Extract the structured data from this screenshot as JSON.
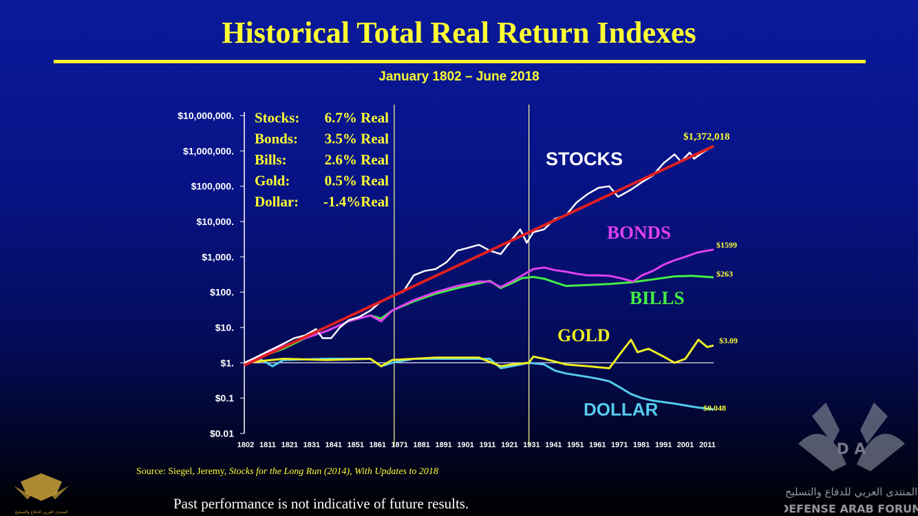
{
  "title": "Historical Total Real Return Indexes",
  "subtitle": "January 1802 – June 2018",
  "source_prefix": "Source:  Siegel,  Jeremy, ",
  "source_italic": "Stocks for the Long Run (2014), With Updates to 2018",
  "disclaimer": "Past performance is not indicative of future results.",
  "watermark": {
    "arabic": "المنتدى العربي للدفاع والتسليح",
    "english": "DEFENSE ARAB FORUM",
    "left_logo_text": "المنتدى العربي للدفاع والتسليح"
  },
  "colors": {
    "text_accent": "#ffff33",
    "stocks": "#ffffff",
    "trend": "#e02020",
    "bonds": "#e040f0",
    "bills": "#44ee44",
    "gold": "#eeee22",
    "dollar": "#55ccee"
  },
  "chart_data": {
    "type": "line",
    "log_scale_y": true,
    "xlim": [
      1802,
      2018
    ],
    "ylim": [
      0.01,
      10000000
    ],
    "y_ticks": [
      10000000,
      1000000,
      100000,
      10000,
      1000,
      100,
      10,
      1,
      0.1,
      0.01
    ],
    "y_tick_labels": [
      "$10,000,000.",
      "$1,000,000.",
      "$100,000.",
      "$10,000.",
      "$1,000.",
      "$100.",
      "$10.",
      "$1.",
      "$0.1",
      "$0.01"
    ],
    "x_tick_labels": [
      "1802",
      "1811",
      "1821",
      "1831",
      "1841",
      "1851",
      "1861",
      "1871",
      "1881",
      "1891",
      "1901",
      "1911",
      "1921",
      "1931",
      "1941",
      "1951",
      "1961",
      "1971",
      "1981",
      "1991",
      "2001",
      "2011"
    ],
    "vertical_lines": [
      1871,
      1933
    ],
    "summary_box": [
      {
        "label": "Stocks:",
        "value": "6.7% Real"
      },
      {
        "label": "Bonds:",
        "value": "3.5% Real"
      },
      {
        "label": "Bills:",
        "value": "2.6% Real"
      },
      {
        "label": "Gold:",
        "value": "0.5% Real"
      },
      {
        "label": "Dollar:",
        "value": "-1.4%Real"
      }
    ],
    "series": [
      {
        "name": "STOCKS",
        "end_label": "$1,372,018",
        "x": [
          1802,
          1806,
          1812,
          1818,
          1825,
          1830,
          1835,
          1838,
          1842,
          1846,
          1850,
          1855,
          1860,
          1865,
          1870,
          1875,
          1880,
          1885,
          1890,
          1895,
          1900,
          1905,
          1910,
          1915,
          1920,
          1925,
          1929,
          1932,
          1935,
          1940,
          1945,
          1950,
          1955,
          1960,
          1965,
          1970,
          1974,
          1980,
          1985,
          1990,
          1995,
          2000,
          2003,
          2007,
          2009,
          2013,
          2018
        ],
        "y": [
          1,
          1.3,
          2,
          3,
          5,
          6,
          9,
          5,
          5,
          10,
          16,
          20,
          30,
          55,
          80,
          100,
          300,
          400,
          450,
          700,
          1500,
          1800,
          2200,
          1500,
          1200,
          3000,
          6000,
          2500,
          5000,
          6000,
          12000,
          15000,
          35000,
          60000,
          90000,
          100000,
          50000,
          80000,
          130000,
          200000,
          450000,
          800000,
          500000,
          900000,
          600000,
          900000,
          1372018
        ]
      },
      {
        "name": "Trend",
        "x": [
          1802,
          2018
        ],
        "y": [
          0.85,
          1372018
        ]
      },
      {
        "name": "BONDS",
        "end_label": "$1599",
        "x": [
          1802,
          1810,
          1820,
          1830,
          1840,
          1850,
          1860,
          1865,
          1870,
          1880,
          1890,
          1900,
          1910,
          1915,
          1920,
          1925,
          1930,
          1935,
          1940,
          1945,
          1950,
          1955,
          1960,
          1965,
          1970,
          1975,
          1981,
          1985,
          1990,
          1995,
          2000,
          2005,
          2010,
          2015,
          2018
        ],
        "y": [
          1,
          1.6,
          3,
          5,
          8,
          15,
          22,
          15,
          30,
          60,
          100,
          150,
          200,
          200,
          140,
          200,
          300,
          450,
          500,
          420,
          380,
          330,
          300,
          300,
          290,
          250,
          200,
          300,
          400,
          600,
          800,
          1000,
          1300,
          1500,
          1599
        ]
      },
      {
        "name": "BILLS",
        "end_label": "$263",
        "x": [
          1802,
          1810,
          1820,
          1830,
          1840,
          1850,
          1860,
          1865,
          1870,
          1880,
          1890,
          1900,
          1910,
          1915,
          1920,
          1925,
          1930,
          1935,
          1940,
          1945,
          1950,
          1960,
          1970,
          1980,
          1990,
          2000,
          2008,
          2018
        ],
        "y": [
          1,
          1.5,
          2.5,
          5,
          8,
          15,
          22,
          18,
          30,
          55,
          90,
          130,
          180,
          210,
          130,
          180,
          250,
          270,
          240,
          190,
          150,
          160,
          170,
          190,
          230,
          280,
          290,
          263
        ]
      },
      {
        "name": "GOLD",
        "end_label": "$3.09",
        "x": [
          1802,
          1820,
          1840,
          1860,
          1865,
          1870,
          1890,
          1900,
          1910,
          1920,
          1925,
          1933,
          1935,
          1940,
          1950,
          1960,
          1965,
          1970,
          1975,
          1980,
          1983,
          1988,
          1995,
          2000,
          2005,
          2011,
          2015,
          2018
        ],
        "y": [
          1,
          1.3,
          1.2,
          1.3,
          0.8,
          1.2,
          1.4,
          1.4,
          1.4,
          0.8,
          0.9,
          1.0,
          1.5,
          1.3,
          0.9,
          0.8,
          0.75,
          0.7,
          1.8,
          4.5,
          2.0,
          2.5,
          1.5,
          1.0,
          1.3,
          4.5,
          2.8,
          3.09
        ]
      },
      {
        "name": "DOLLAR",
        "end_label": "$0.048",
        "x": [
          1802,
          1810,
          1815,
          1820,
          1840,
          1860,
          1865,
          1870,
          1880,
          1900,
          1915,
          1920,
          1925,
          1933,
          1940,
          1945,
          1950,
          1960,
          1965,
          1970,
          1975,
          1980,
          1985,
          1990,
          2000,
          2010,
          2018
        ],
        "y": [
          1,
          1.2,
          0.8,
          1.2,
          1.3,
          1.3,
          0.8,
          1.0,
          1.3,
          1.3,
          1.3,
          0.7,
          0.8,
          1.0,
          0.9,
          0.6,
          0.5,
          0.4,
          0.35,
          0.3,
          0.2,
          0.13,
          0.1,
          0.085,
          0.07,
          0.055,
          0.048
        ]
      }
    ]
  }
}
